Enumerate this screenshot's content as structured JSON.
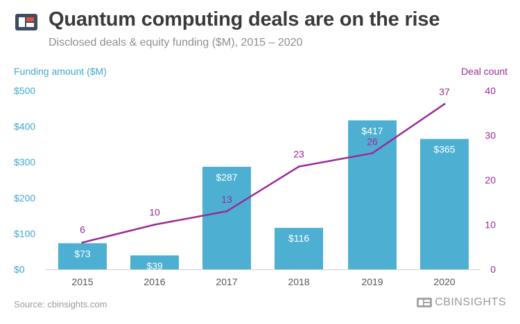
{
  "header": {
    "title": "Quantum computing deals are on the rise",
    "subtitle": "Disclosed deals & equity funding ($M), 2015 – 2020"
  },
  "colors": {
    "bar": "#4db0d3",
    "line": "#9b2a98",
    "left_axis": "#3fa7cf",
    "right_axis": "#9b2a98",
    "tick": "#555555",
    "title": "#3a3a3a"
  },
  "footer": {
    "source": "Source: cbinsights.com",
    "brand": "CBINSIGHTS"
  },
  "chart_data": {
    "type": "bar",
    "categories": [
      "2015",
      "2016",
      "2017",
      "2018",
      "2019",
      "2020"
    ],
    "series": [
      {
        "name": "Funding amount ($M)",
        "type": "bar",
        "axis": "left",
        "values": [
          73,
          39,
          287,
          116,
          417,
          365
        ],
        "labels": [
          "$73",
          "$39",
          "$287",
          "$116",
          "$417",
          "$365"
        ]
      },
      {
        "name": "Deal count",
        "type": "line",
        "axis": "right",
        "values": [
          6,
          10,
          13,
          23,
          26,
          37
        ],
        "labels": [
          "6",
          "10",
          "13",
          "23",
          "26",
          "37"
        ]
      }
    ],
    "ylabel_left": "Funding amount ($M)",
    "ylabel_right": "Deal count",
    "ylim_left": [
      0,
      500
    ],
    "ylim_right": [
      0,
      40
    ],
    "yticks_left": [
      "$0",
      "$100",
      "$200",
      "$300",
      "$400",
      "$500"
    ],
    "yticks_right": [
      "0",
      "10",
      "20",
      "30",
      "40"
    ],
    "grid": false,
    "legend": "none"
  }
}
